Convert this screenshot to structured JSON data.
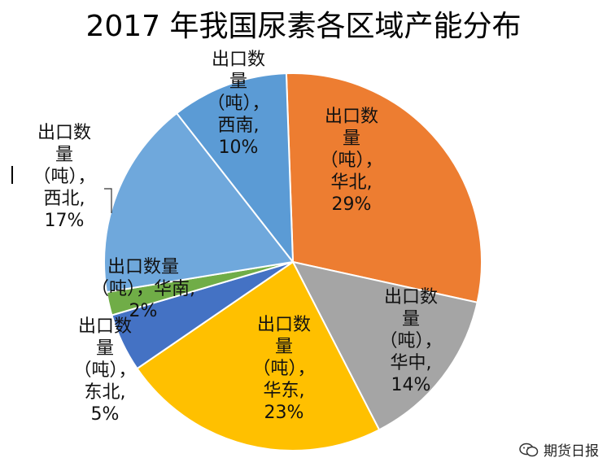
{
  "title": "2017 年我国尿素各区域产能分布",
  "watermark": {
    "text": "期货日报",
    "icon": "wechat-icon"
  },
  "chart_data": {
    "type": "pie",
    "title": "2017 年我国尿素各区域产能分布",
    "series_name": "出口数量（吨）",
    "slices": [
      {
        "name": "华北",
        "value": 29,
        "percent_label": "29%",
        "color": "#ED7D31",
        "label": "出口数\n量\n（吨），\n华北,\n29%"
      },
      {
        "name": "华中",
        "value": 14,
        "percent_label": "14%",
        "color": "#A5A5A5",
        "label": "出口数\n量\n（吨），\n华中,\n14%"
      },
      {
        "name": "华东",
        "value": 23,
        "percent_label": "23%",
        "color": "#FFC000",
        "label": "出口数\n量\n（吨），\n华东,\n23%"
      },
      {
        "name": "东北",
        "value": 5,
        "percent_label": "5%",
        "color": "#4472C4",
        "label": "出口数\n量\n（吨），\n东北,\n5%"
      },
      {
        "name": "华南",
        "value": 2,
        "percent_label": "2%",
        "color": "#70AD47",
        "label": "出口数量\n（吨），华南,\n2%"
      },
      {
        "name": "西北",
        "value": 17,
        "percent_label": "17%",
        "color": "#6FA8DC",
        "label": "出口数\n量\n（吨），\n西北,\n17%"
      },
      {
        "name": "西南",
        "value": 10,
        "percent_label": "10%",
        "color": "#5B9BD5",
        "label": "出口数\n量\n（吨），\n西南,\n10%"
      }
    ]
  }
}
